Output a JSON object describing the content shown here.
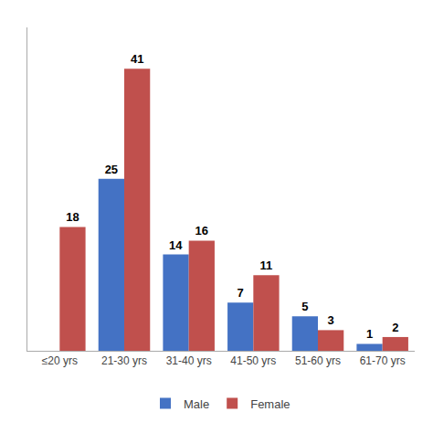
{
  "chart_data": {
    "type": "bar",
    "categories": [
      "≤20 yrs",
      "21-30 yrs",
      "31-40 yrs",
      "41-50 yrs",
      "51-60 yrs",
      "61-70 yrs"
    ],
    "series": [
      {
        "name": "Male",
        "color": "#4472C4",
        "values": [
          0,
          25,
          14,
          7,
          5,
          1
        ]
      },
      {
        "name": "Female",
        "color": "#C0504D",
        "values": [
          18,
          41,
          16,
          11,
          3,
          2
        ]
      }
    ],
    "ylim": [
      0,
      47
    ],
    "grid": false,
    "legend": "bottom",
    "data_labels": true,
    "tick_labels": "x"
  }
}
